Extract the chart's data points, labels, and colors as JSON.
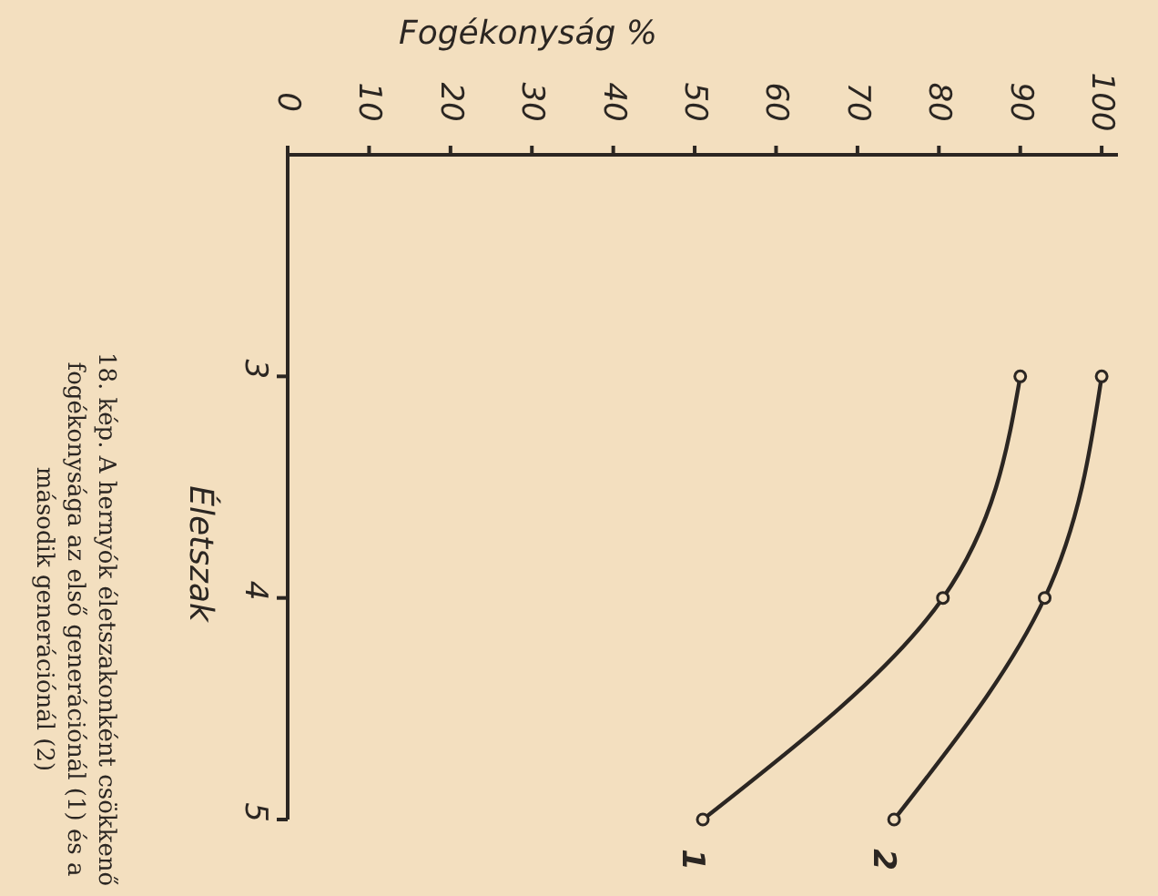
{
  "chart_data": {
    "type": "line",
    "xlabel": "Fogékonyság %",
    "ylabel": "Életszak",
    "series": [
      {
        "name": "1",
        "color": "#2b2622",
        "x": [
          90,
          80.5,
          51
        ],
        "values": [
          3,
          4,
          5
        ]
      },
      {
        "name": "2",
        "color": "#2b2622",
        "x": [
          100,
          93,
          74.5
        ],
        "values": [
          3,
          4,
          5
        ]
      }
    ],
    "xlim": [
      0,
      102
    ],
    "xticks": [
      0,
      10,
      20,
      30,
      40,
      50,
      60,
      70,
      80,
      90,
      100
    ],
    "ylim": [
      5,
      2
    ],
    "yticks": [
      3,
      4,
      5
    ],
    "grid": false,
    "marker": "circle",
    "line_style": "solid",
    "legend": false,
    "annotations": [
      "18. kép. A hernyók életszakonként csökkenő\nfogékonysága az első generációnál (1) és a\nmásodik generációnál (2)"
    ]
  }
}
